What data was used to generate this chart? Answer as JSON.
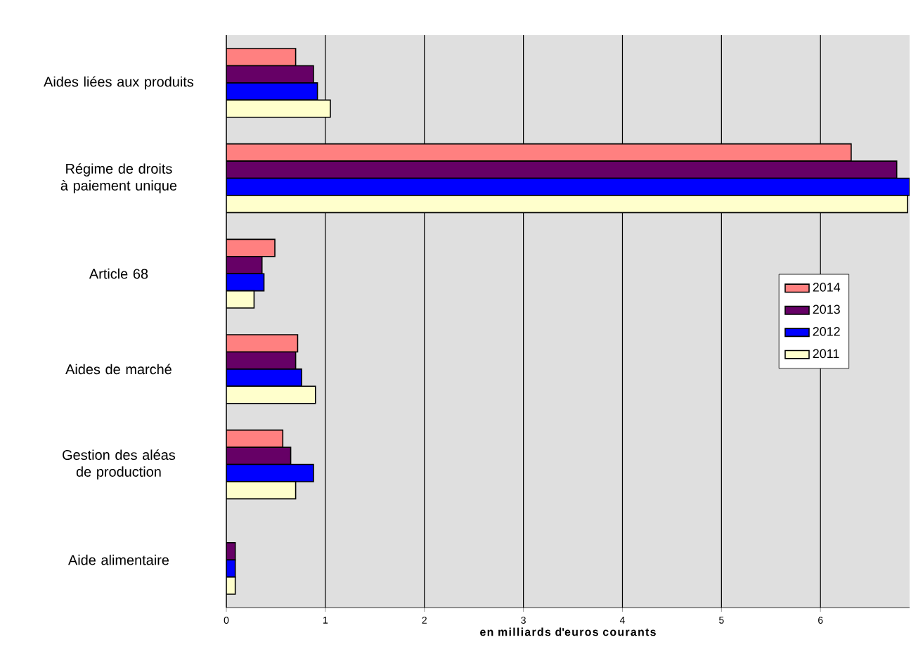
{
  "chart_data": {
    "type": "bar",
    "orientation": "horizontal",
    "xlabel": "en milliards d'euros courants",
    "categories": [
      "Aides liées aux produits",
      "Régime de droits à paiement unique",
      "Article 68",
      "Aides de marché",
      "Gestion des aléas de production",
      "Aide alimentaire"
    ],
    "series": [
      {
        "name": "2014",
        "color": "#ff8080",
        "values": [
          0.7,
          6.31,
          0.49,
          0.72,
          0.57,
          null
        ]
      },
      {
        "name": "2013",
        "color": "#660066",
        "values": [
          0.88,
          6.77,
          0.36,
          0.7,
          0.65,
          0.09
        ]
      },
      {
        "name": "2012",
        "color": "#0000ff",
        "values": [
          0.92,
          6.9,
          0.38,
          0.76,
          0.88,
          0.09
        ]
      },
      {
        "name": "2011",
        "color": "#ffffcc",
        "values": [
          1.05,
          6.88,
          0.28,
          0.9,
          0.7,
          0.09
        ]
      }
    ],
    "xlim": [
      0,
      6.9
    ],
    "xticks": [
      0,
      1,
      2,
      3,
      4,
      5,
      6
    ],
    "grid": "x",
    "legend": "right"
  }
}
